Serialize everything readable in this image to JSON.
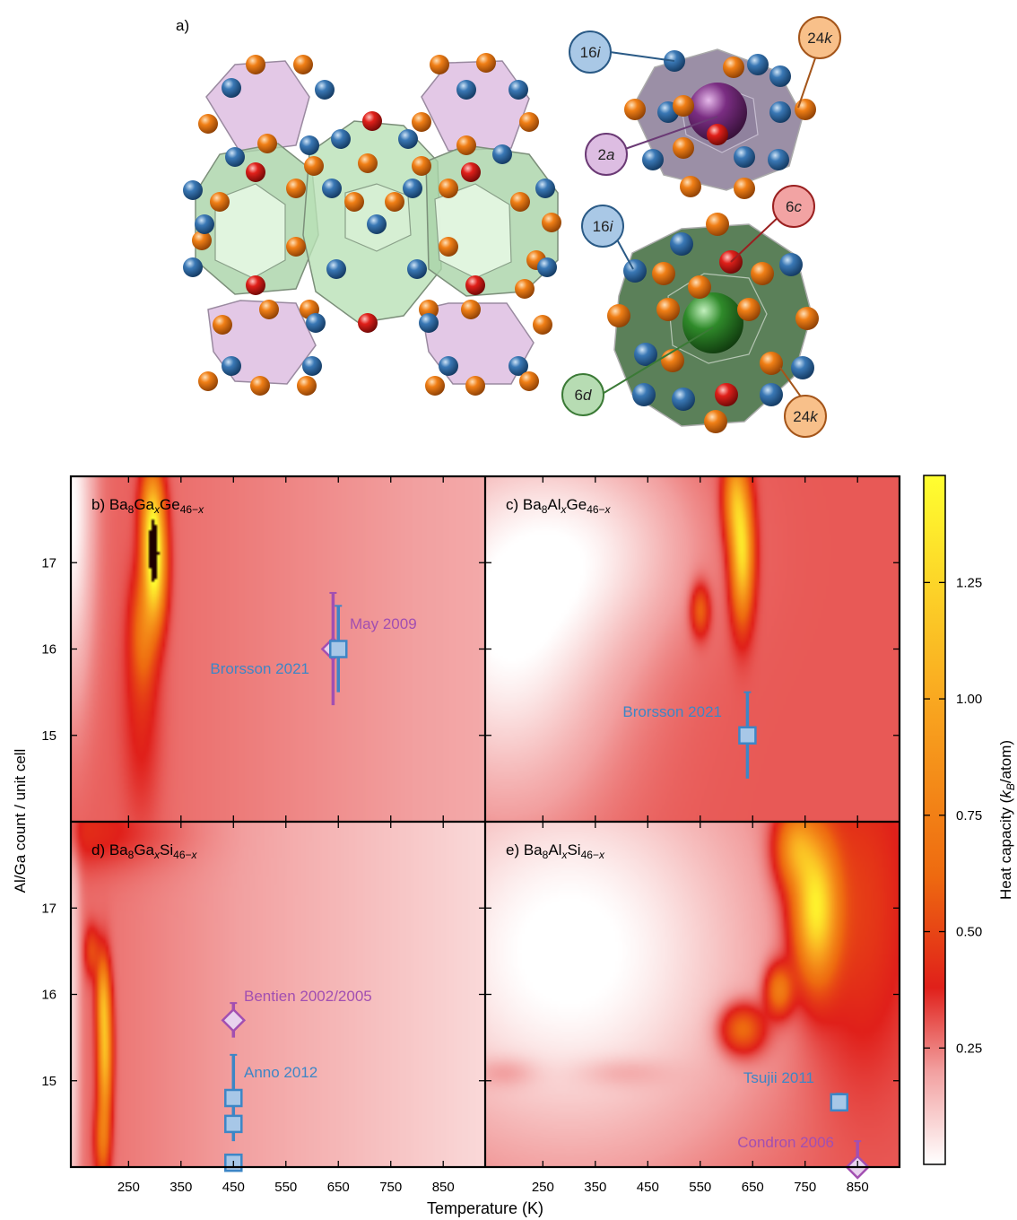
{
  "structure_panel": {
    "label": "a)",
    "site_labels": [
      {
        "site": "16",
        "letter": "i",
        "fill": "#a9c8e6",
        "stroke": "#2a5a86"
      },
      {
        "site": "24",
        "letter": "k",
        "fill": "#f8c08a",
        "stroke": "#a4551a"
      },
      {
        "site": "2",
        "letter": "a",
        "fill": "#ddbde2",
        "stroke": "#6b3a75"
      },
      {
        "site": "16",
        "letter": "i",
        "fill": "#a9c8e6",
        "stroke": "#2a5a86"
      },
      {
        "site": "6",
        "letter": "c",
        "fill": "#f2a3a3",
        "stroke": "#9a2020"
      },
      {
        "site": "6",
        "letter": "d",
        "fill": "#b7dcb3",
        "stroke": "#3b7a36"
      },
      {
        "site": "24",
        "letter": "k",
        "fill": "#f8c08a",
        "stroke": "#a4551a"
      }
    ],
    "atom_colors": {
      "16i": "#3a78b5",
      "24k": "#f07f16",
      "6c": "#e0201a",
      "2a": "#7a2d82",
      "6d": "#2f8a2a"
    }
  },
  "colors": {
    "reference_blue": "#3d86c6",
    "reference_purple": "#a24fb1",
    "marker_fill_blue": "#a7c7e7",
    "marker_fill_purple": "#e8d2ee"
  },
  "chart_data": {
    "type": "heatmap",
    "xlabel": "Temperature (K)",
    "ylabel": "Al/Ga count / unit cell",
    "xlim": [
      140,
      930
    ],
    "ylim": [
      14,
      18
    ],
    "xticks": [
      250,
      350,
      450,
      550,
      650,
      750,
      850
    ],
    "yticks": [
      15,
      16,
      17
    ],
    "colorbar": {
      "label": "Heat capacity (k_B/atom)",
      "ticks": [
        "0.25",
        "0.50",
        "0.75",
        "1.00",
        "1.25"
      ],
      "range": [
        0,
        1.48
      ],
      "stops": [
        {
          "v": 0.0,
          "color": "#ffffff"
        },
        {
          "v": 0.2,
          "color": "#f2a0a0"
        },
        {
          "v": 0.38,
          "color": "#e0201a"
        },
        {
          "v": 0.62,
          "color": "#ee6a10"
        },
        {
          "v": 1.0,
          "color": "#f9a820"
        },
        {
          "v": 1.48,
          "color": "#ffff30"
        }
      ]
    },
    "panels": [
      {
        "label": "b)",
        "compound": "Ba8GaxGe46-x",
        "base": 0.3,
        "x_fade": 0.12,
        "blobs": [
          {
            "x": 140,
            "y": 17.6,
            "sx": 30,
            "sy": 1.5,
            "a": -0.3
          },
          {
            "x": 300,
            "y": 16.95,
            "sx": 14,
            "sy": 0.45,
            "a": 1.1
          },
          {
            "x": 295,
            "y": 17.55,
            "sx": 14,
            "sy": 0.4,
            "a": 0.7
          },
          {
            "x": 278,
            "y": 16.2,
            "sx": 16,
            "sy": 0.45,
            "a": 0.35
          },
          {
            "x": 275,
            "y": 15.3,
            "sx": 25,
            "sy": 0.9,
            "a": 0.12
          }
        ],
        "refs": [
          {
            "name": "May 2009",
            "marker": "diamond",
            "color": "purple",
            "x": 640,
            "y": 16.0,
            "xerr": 15,
            "yerr": 0.65
          },
          {
            "name": "Brorsson 2021",
            "marker": "square",
            "color": "blue",
            "x": 650,
            "y": 16.0,
            "xerr": 0,
            "yerr": 0.5
          }
        ]
      },
      {
        "label": "c)",
        "compound": "Ba8AlxGe46-x",
        "base": 0.3,
        "x_fade": 0.0,
        "blobs": [
          {
            "x": 180,
            "y": 16.3,
            "sx": 150,
            "sy": 1.5,
            "a": -0.3
          },
          {
            "x": 380,
            "y": 17.2,
            "sx": 130,
            "sy": 0.8,
            "a": -0.15
          },
          {
            "x": 630,
            "y": 17.1,
            "sx": 14,
            "sy": 0.5,
            "a": 1.0
          },
          {
            "x": 615,
            "y": 17.75,
            "sx": 14,
            "sy": 0.35,
            "a": 0.6
          },
          {
            "x": 550,
            "y": 16.45,
            "sx": 12,
            "sy": 0.2,
            "a": 0.35
          }
        ],
        "refs": [
          {
            "name": "Brorsson 2021",
            "marker": "square",
            "color": "blue",
            "x": 640,
            "y": 15.0,
            "xerr": 0,
            "yerr": 0.5
          }
        ]
      },
      {
        "label": "d)",
        "compound": "Ba8GaxSi46-x",
        "base": 0.28,
        "x_fade": 0.2,
        "blobs": [
          {
            "x": 140,
            "y": 15.7,
            "sx": 12,
            "sy": 2.5,
            "a": -0.2
          },
          {
            "x": 205,
            "y": 15.35,
            "sx": 9,
            "sy": 0.55,
            "a": 0.85
          },
          {
            "x": 200,
            "y": 16.0,
            "sx": 8,
            "sy": 0.3,
            "a": 0.4
          },
          {
            "x": 200,
            "y": 14.3,
            "sx": 10,
            "sy": 0.3,
            "a": 0.35
          },
          {
            "x": 180,
            "y": 16.5,
            "sx": 10,
            "sy": 0.2,
            "a": 0.25
          },
          {
            "x": 160,
            "y": 17.9,
            "sx": 120,
            "sy": 0.3,
            "a": 0.15
          }
        ],
        "refs": [
          {
            "name": "Bentien 2002/2005",
            "marker": "diamond",
            "color": "purple",
            "x": 450,
            "y": 15.7,
            "xerr": 0,
            "yerr": 0.2
          },
          {
            "name": "Anno 2012",
            "marker": "square",
            "color": "blue",
            "x": 450,
            "y": 14.8,
            "xerr": 0,
            "yerr": 0.5
          },
          {
            "name": "",
            "marker": "square",
            "color": "blue",
            "x": 450,
            "y": 14.5,
            "xerr": 0,
            "yerr": 0
          },
          {
            "name": "",
            "marker": "square",
            "color": "blue",
            "x": 450,
            "y": 14.05,
            "xerr": 0,
            "yerr": 0
          }
        ]
      },
      {
        "label": "e)",
        "compound": "Ba8AlxSi46-x",
        "base": 0.3,
        "x_fade": 0.0,
        "blobs": [
          {
            "x": 300,
            "y": 16.5,
            "sx": 260,
            "sy": 1.7,
            "a": -0.32
          },
          {
            "x": 770,
            "y": 17.0,
            "sx": 28,
            "sy": 0.55,
            "a": 1.05
          },
          {
            "x": 730,
            "y": 17.7,
            "sx": 25,
            "sy": 0.3,
            "a": 0.6
          },
          {
            "x": 700,
            "y": 16.05,
            "sx": 18,
            "sy": 0.2,
            "a": 0.5
          },
          {
            "x": 630,
            "y": 15.6,
            "sx": 30,
            "sy": 0.2,
            "a": 0.45
          },
          {
            "x": 850,
            "y": 17.0,
            "sx": 70,
            "sy": 1.3,
            "a": 0.2
          },
          {
            "x": 180,
            "y": 15.1,
            "sx": 40,
            "sy": 0.12,
            "a": 0.1
          },
          {
            "x": 400,
            "y": 15.1,
            "sx": 60,
            "sy": 0.12,
            "a": 0.08
          }
        ],
        "refs": [
          {
            "name": "Tsujii 2011",
            "marker": "square",
            "color": "blue",
            "x": 815,
            "y": 14.75,
            "xerr": 8,
            "yerr": 0.1
          },
          {
            "name": "Condron 2006",
            "marker": "diamond",
            "color": "purple",
            "x": 850,
            "y": 14.0,
            "xerr": 0,
            "yerr": 0.3
          }
        ]
      }
    ]
  }
}
